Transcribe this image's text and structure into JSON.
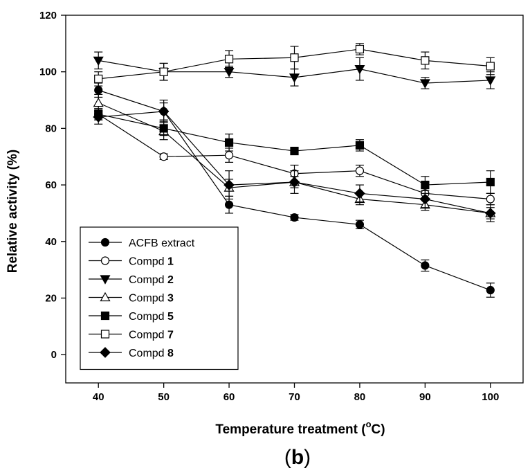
{
  "chart_data": {
    "type": "line",
    "x": [
      40,
      50,
      60,
      70,
      80,
      90,
      100
    ],
    "xlabel_prefix": "Temperature treatment (",
    "xlabel_degree": "o",
    "xlabel_suffix": "C)",
    "ylabel": "Relative activity (%)",
    "xlim": [
      35,
      105
    ],
    "ylim": [
      -10,
      120
    ],
    "x_ticks": [
      40,
      50,
      60,
      70,
      80,
      90,
      100
    ],
    "y_ticks": [
      0,
      20,
      40,
      60,
      80,
      100,
      120
    ],
    "grid": false,
    "legend_position": "lower-left",
    "panel_label_open": "(",
    "panel_label_letter": "b",
    "panel_label_close": ")",
    "series": [
      {
        "name": "ACFB extract",
        "name_plain": "ACFB extract",
        "name_bold": "",
        "marker": "circle",
        "filled": true,
        "values": [
          93.5,
          86,
          53,
          48.5,
          46,
          31.5,
          22.8
        ],
        "errors": [
          2.5,
          3,
          3,
          1,
          1.5,
          2,
          2.5
        ]
      },
      {
        "name": "Compd 1",
        "name_plain": "Compd ",
        "name_bold": "1",
        "marker": "circle",
        "filled": false,
        "values": [
          85,
          70,
          70.5,
          64,
          65,
          57,
          55
        ],
        "errors": [
          2,
          1,
          2.5,
          3,
          2,
          2,
          2
        ]
      },
      {
        "name": "Compd 2",
        "name_plain": "Compd ",
        "name_bold": "2",
        "marker": "triangle-down",
        "filled": true,
        "values": [
          104,
          100,
          100,
          98,
          101,
          96,
          97
        ],
        "errors": [
          3,
          3,
          2,
          3,
          4,
          2,
          3
        ]
      },
      {
        "name": "Compd 3",
        "name_plain": "Compd ",
        "name_bold": "3",
        "marker": "triangle-up",
        "filled": false,
        "values": [
          89,
          79,
          59,
          61,
          55,
          53,
          50
        ],
        "errors": [
          3,
          3,
          3,
          2,
          2,
          2,
          2
        ]
      },
      {
        "name": "Compd 5",
        "name_plain": "Compd ",
        "name_bold": "5",
        "marker": "square",
        "filled": true,
        "values": [
          85,
          80,
          75,
          72,
          74,
          60,
          61
        ],
        "errors": [
          2,
          2.5,
          3,
          1,
          2,
          3,
          4
        ]
      },
      {
        "name": "Compd 7",
        "name_plain": "Compd ",
        "name_bold": "7",
        "marker": "square",
        "filled": false,
        "values": [
          97.5,
          100,
          104.5,
          105,
          108,
          104,
          102
        ],
        "errors": [
          2.5,
          3,
          3,
          4,
          2,
          3,
          3
        ]
      },
      {
        "name": "Compd 8",
        "name_plain": "Compd ",
        "name_bold": "8",
        "marker": "diamond",
        "filled": true,
        "values": [
          84,
          86,
          60,
          61,
          57,
          55,
          50
        ],
        "errors": [
          2.5,
          4,
          5,
          4,
          3,
          3,
          3
        ]
      }
    ]
  }
}
